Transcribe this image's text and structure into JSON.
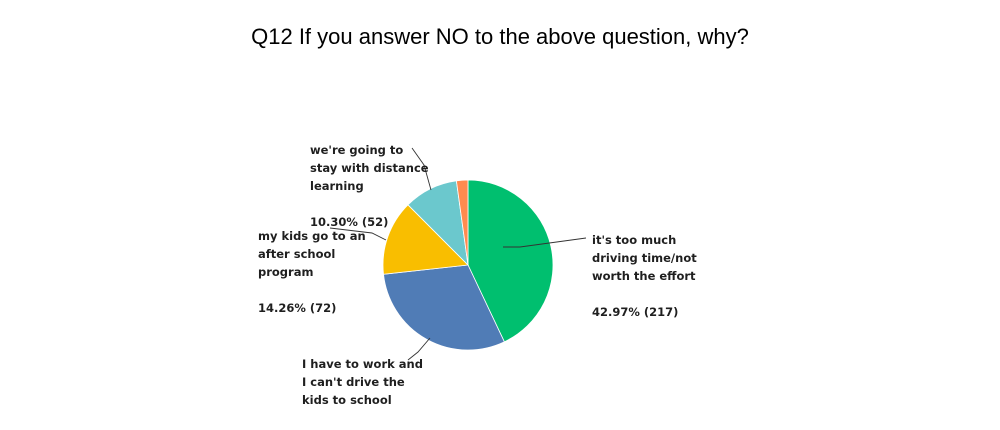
{
  "chart_data": {
    "type": "pie",
    "title": "Q12 If you answer NO to the above question, why?",
    "slices": [
      {
        "label_lines": [
          "it's too much",
          "driving time/not",
          "worth the effort"
        ],
        "value_text": "42.97% (217)",
        "percent": 42.97,
        "count": 217,
        "color": "#00bf6f"
      },
      {
        "label_lines": [
          "I have to work and",
          "I can't drive the",
          "kids to school"
        ],
        "value_text": "",
        "percent": 30.3,
        "count": null,
        "color": "#507cb6"
      },
      {
        "label_lines": [
          "my kids go to an",
          "after school",
          "program"
        ],
        "value_text": "14.26% (72)",
        "percent": 14.26,
        "count": 72,
        "color": "#f9be00"
      },
      {
        "label_lines": [
          "we're going to",
          "stay with distance",
          "learning"
        ],
        "value_text": "10.30% (52)",
        "percent": 10.3,
        "count": 52,
        "color": "#6bc8cd"
      },
      {
        "label_lines": [],
        "value_text": "",
        "percent": 2.18,
        "count": null,
        "color": "#ff8b4f"
      }
    ]
  }
}
